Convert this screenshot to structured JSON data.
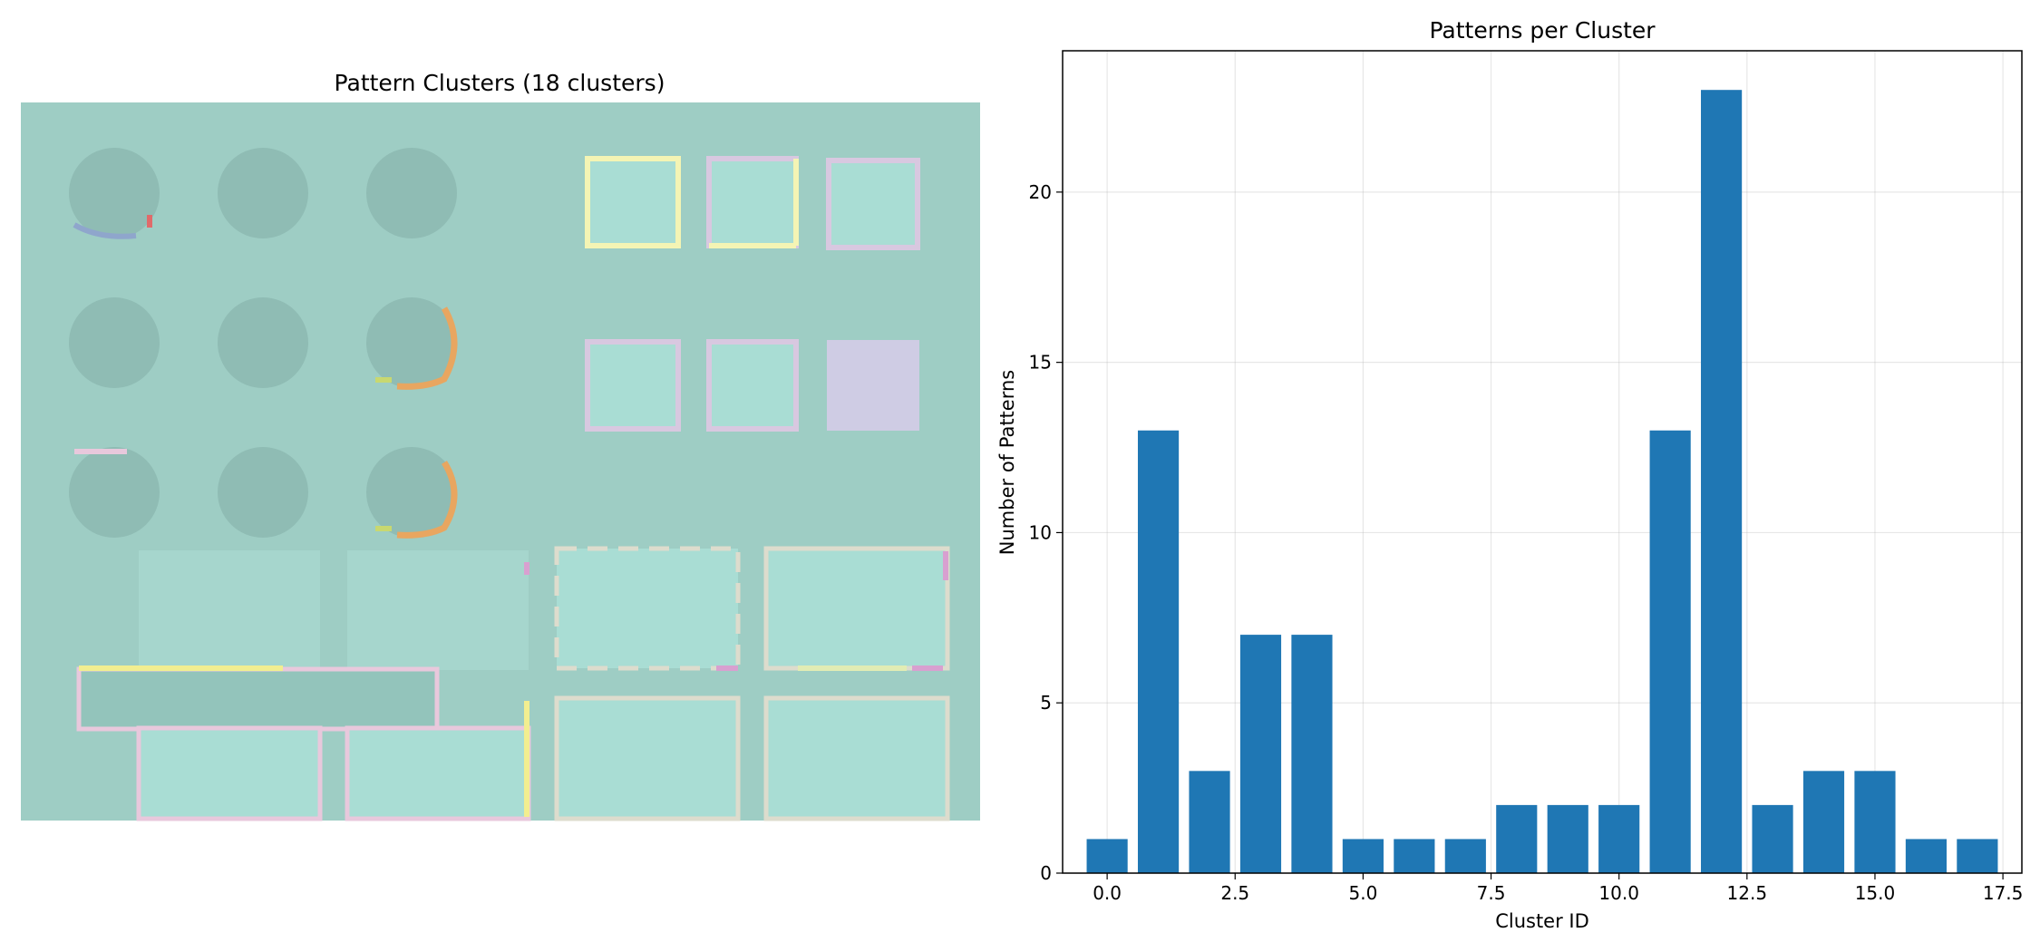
{
  "left_panel": {
    "title": "Pattern Clusters (18 clusters)",
    "background_color": "#9ecdc4"
  },
  "chart_data": {
    "type": "bar",
    "title": "Patterns per Cluster",
    "xlabel": "Cluster ID",
    "ylabel": "Number of Patterns",
    "categories": [
      0,
      1,
      2,
      3,
      4,
      5,
      6,
      7,
      8,
      9,
      10,
      11,
      12,
      13,
      14,
      15,
      16,
      17
    ],
    "values": [
      1,
      13,
      3,
      7,
      7,
      1,
      1,
      1,
      2,
      2,
      2,
      13,
      23,
      2,
      3,
      3,
      1,
      1
    ],
    "xlim": [
      -0.87,
      17.87
    ],
    "ylim": [
      0,
      24.15
    ],
    "xticks": [
      "0.0",
      "2.5",
      "5.0",
      "7.5",
      "10.0",
      "12.5",
      "15.0",
      "17.5"
    ],
    "yticks": [
      "0",
      "5",
      "10",
      "15",
      "20"
    ],
    "grid": true,
    "bar_color": "#1f77b4"
  }
}
